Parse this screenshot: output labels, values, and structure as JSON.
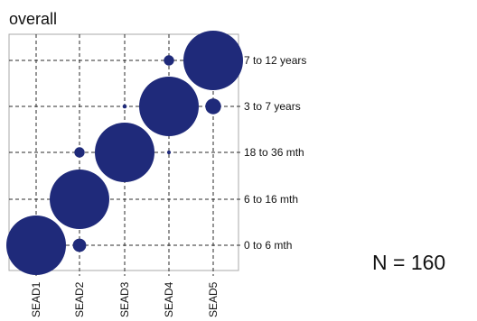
{
  "sample_note": "N = 160",
  "colors": {
    "bubble": "#1f2a7a",
    "grid": "#2b2b2b",
    "frame": "#a8a8a8",
    "text": "#111111"
  },
  "chart_data": {
    "type": "scatter",
    "subtype": "bubble",
    "title": "overall",
    "x_categories": [
      "SEAD1",
      "SEAD2",
      "SEAD3",
      "SEAD4",
      "SEAD5"
    ],
    "y_categories": [
      "0 to 6 mth",
      "6 to 16 mth",
      "18 to 36 mth",
      "3 to 7 years",
      "7 to 12 years"
    ],
    "grid": "dashed",
    "size_encoding": "relative bubble area",
    "points": [
      {
        "x": "SEAD1",
        "y": "0 to 6 mth",
        "size": 1.0
      },
      {
        "x": "SEAD2",
        "y": "0 to 6 mth",
        "size": 0.05
      },
      {
        "x": "SEAD2",
        "y": "6 to 16 mth",
        "size": 1.0
      },
      {
        "x": "SEAD2",
        "y": "18 to 36 mth",
        "size": 0.03
      },
      {
        "x": "SEAD3",
        "y": "18 to 36 mth",
        "size": 1.0
      },
      {
        "x": "SEAD3",
        "y": "3 to 7 years",
        "size": 0.005
      },
      {
        "x": "SEAD4",
        "y": "18 to 36 mth",
        "size": 0.004
      },
      {
        "x": "SEAD4",
        "y": "3 to 7 years",
        "size": 1.0
      },
      {
        "x": "SEAD4",
        "y": "7 to 12 years",
        "size": 0.03
      },
      {
        "x": "SEAD5",
        "y": "3 to 7 years",
        "size": 0.07
      },
      {
        "x": "SEAD5",
        "y": "7 to 12 years",
        "size": 1.0
      }
    ]
  }
}
